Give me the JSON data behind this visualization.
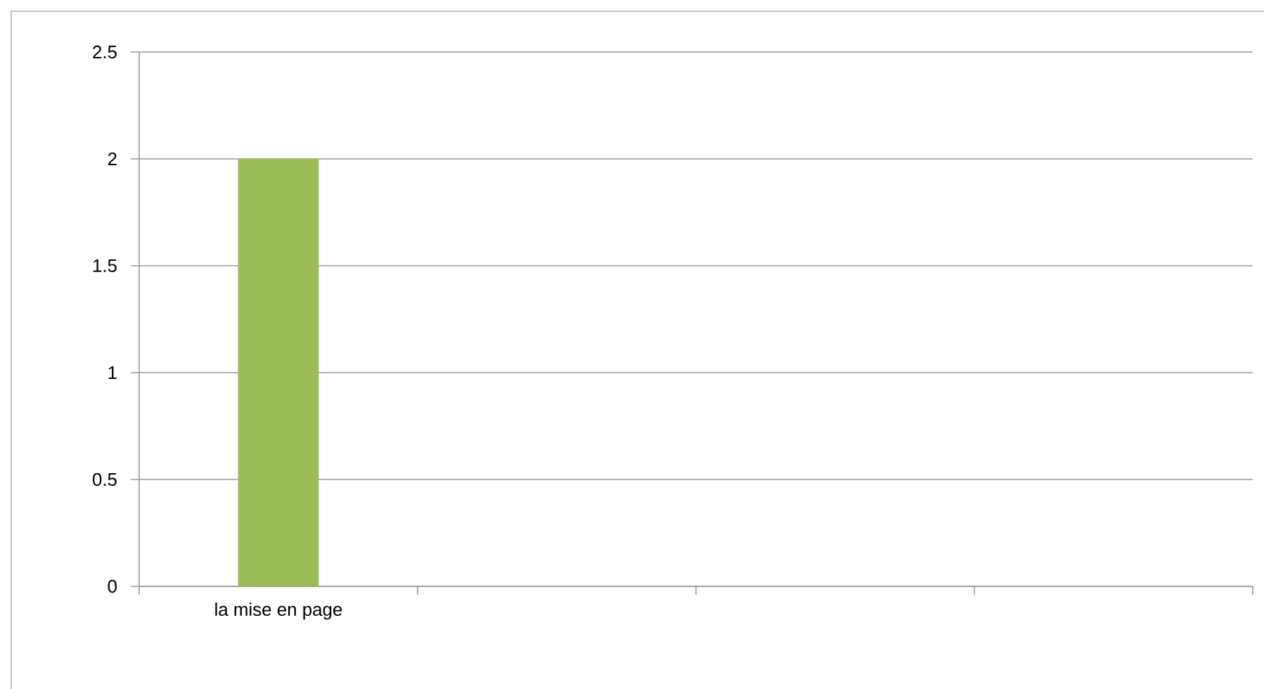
{
  "chart_data": {
    "type": "bar",
    "categories": [
      "la mise en page",
      null,
      null,
      null
    ],
    "values": [
      2,
      null,
      null,
      null
    ],
    "color": "#9bbb59",
    "ylim": [
      0,
      2.5
    ],
    "yticks": [
      0,
      0.5,
      1,
      1.5,
      2,
      2.5
    ],
    "grid": "y"
  }
}
